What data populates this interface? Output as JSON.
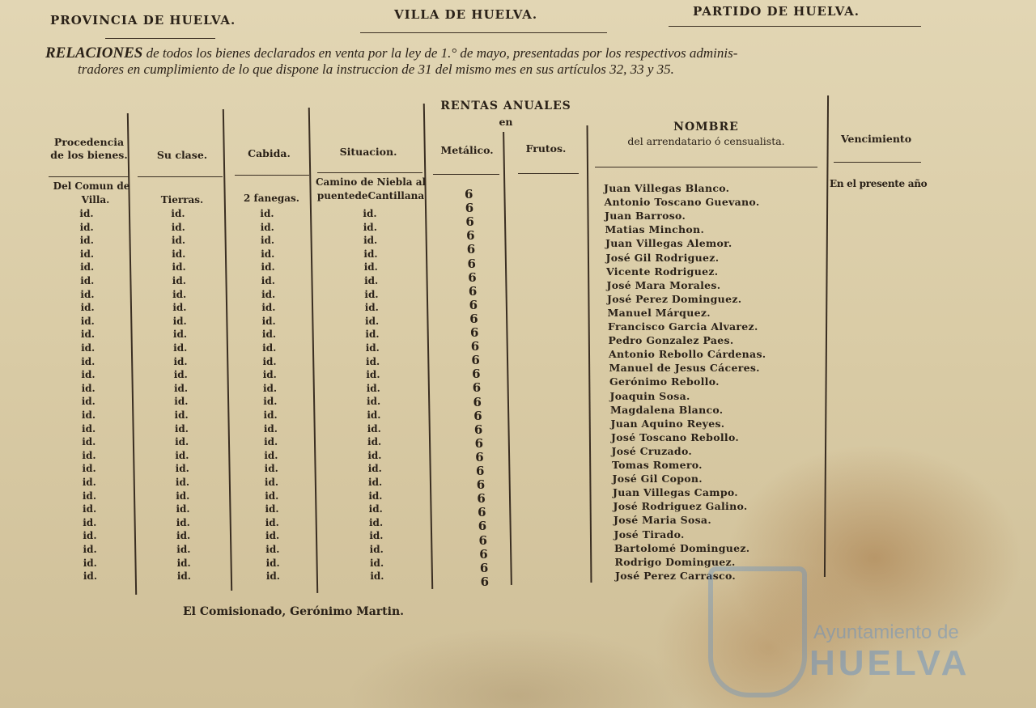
{
  "header": {
    "provincia": "PROVINCIA DE HUELVA.",
    "villa": "VILLA DE HUELVA.",
    "partido": "PARTIDO DE HUELVA."
  },
  "intro": {
    "lead": "RELACIONES",
    "line1": " de todos los bienes declarados en venta por la ley de 1.° de mayo, presentadas por los respectivos adminis-",
    "line2": "tradores en cumplimiento de lo que dispone la instruccion de 31 del mismo mes en sus artículos 32, 33 y 35."
  },
  "columns": {
    "procedencia": "Procedencia de los bienes.",
    "clase": "Su clase.",
    "cabida": "Cabida.",
    "situacion": "Situacion.",
    "rentas": "RENTAS ANUALES",
    "rentas_en": "en",
    "metalico": "Metálico.",
    "frutos": "Frutos.",
    "nombre": "NOMBRE",
    "nombre_sub": "del arrendatario ó censualista.",
    "vencimiento": "Vencimiento"
  },
  "rows": {
    "procedencia_first": [
      "Del Comun de",
      "Villa."
    ],
    "clase_first": "Tierras.",
    "cabida_first": "2 fanegas.",
    "situacion_first": [
      "Camino de Niebla al",
      "puentedeCantillana"
    ],
    "id_label": "id.",
    "id_count": 28,
    "metalico": [
      "6",
      "6",
      "6",
      "6",
      "6",
      "6",
      "6",
      "6",
      "6",
      "6",
      "6",
      "6",
      "6",
      "6",
      "6",
      "6",
      "6",
      "6",
      "6",
      "6",
      "6",
      "6",
      "6",
      "6",
      "6",
      "6",
      "6",
      "6",
      "6"
    ],
    "nombres": [
      "Juan Villegas Blanco.",
      "Antonio Toscano Guevano.",
      "Juan Barroso.",
      "Matias Minchon.",
      "Juan Villegas Alemor.",
      "José Gil Rodriguez.",
      "Vicente Rodriguez.",
      "José Mara Morales.",
      "José Perez Dominguez.",
      "Manuel Márquez.",
      "Francisco Garcia Alvarez.",
      "Pedro Gonzalez Paes.",
      "Antonio Rebollo Cárdenas.",
      "Manuel de Jesus Cáceres.",
      "Gerónimo Rebollo.",
      "Joaquin Sosa.",
      "Magdalena Blanco.",
      "Juan Aquino Reyes.",
      "José Toscano Rebollo.",
      "José Cruzado.",
      "Tomas Romero.",
      "José Gil Copon.",
      "Juan Villegas Campo.",
      "José Rodriguez Galino.",
      "José Maria Sosa.",
      "José Tirado.",
      "Bartolomé Dominguez.",
      "Rodrigo Dominguez.",
      "José Perez Carrasco."
    ],
    "vencimiento_first": "En el presente año"
  },
  "signature": "El Comisionado, Gerónimo Martin.",
  "watermark": {
    "line1": "Ayuntamiento de",
    "line2": "HUELVA",
    "color": "#5a8cc8"
  }
}
